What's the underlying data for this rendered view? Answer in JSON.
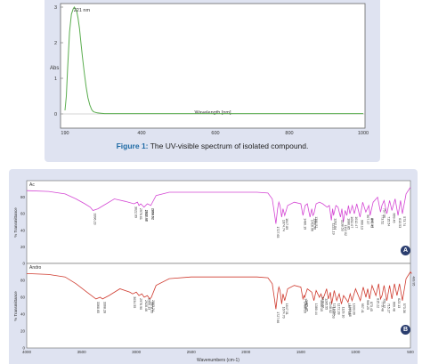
{
  "figure1": {
    "caption_label": "Figure 1:",
    "caption_text": " The UV-visible spectrum of isolated compound."
  },
  "figure_b_badges": [
    "A",
    "B"
  ],
  "chart_data": [
    {
      "type": "line",
      "title": "",
      "xlabel": "Wavelength [nm]",
      "ylabel": "Abs",
      "xlim": [
        190,
        1000
      ],
      "ylim": [
        -0.4,
        3.1
      ],
      "x_ticks": [
        "190",
        "200",
        "400",
        "600",
        "800",
        "1000"
      ],
      "y_ticks": [
        "3",
        "2",
        "1",
        "0"
      ],
      "annotations": [
        {
          "text": "221 nm",
          "x": 221,
          "y": 2.95
        }
      ],
      "series": [
        {
          "color": "#5aad4e",
          "x": [
            190,
            195,
            200,
            205,
            210,
            215,
            218,
            221,
            224,
            228,
            232,
            236,
            240,
            245,
            250,
            255,
            260,
            265,
            270,
            280,
            290,
            300,
            350,
            400,
            500,
            600,
            700,
            800,
            900,
            1000
          ],
          "y": [
            0.1,
            0.5,
            1.3,
            2.3,
            2.8,
            2.95,
            3.0,
            2.95,
            2.9,
            2.7,
            2.4,
            2.0,
            1.6,
            1.15,
            0.75,
            0.45,
            0.25,
            0.12,
            0.06,
            0.03,
            0.02,
            0.01,
            0.01,
            0.01,
            0.01,
            0.01,
            0.01,
            0.01,
            0.01,
            0.01
          ]
        }
      ]
    },
    {
      "type": "line",
      "panel": "A",
      "header": "Ac",
      "xlabel": "",
      "ylabel": "% Transmittance",
      "xlim": [
        4000,
        500
      ],
      "ylim": [
        0,
        100
      ],
      "y_ticks": [
        "80",
        "60",
        "40",
        "20",
        "0"
      ],
      "peaks": [
        "3396.23",
        "3022.69",
        "2976.61",
        "2930.39",
        "2927.47",
        "2868.52",
        "2869.62",
        "1727.65",
        "1674.74",
        "1647.89",
        "1480.19",
        "1416.96",
        "1390.96",
        "1380.52",
        "1221.19",
        "1202.04",
        "1138.53",
        "1112.02",
        "1080.85",
        "1052.07",
        "1012.47",
        "960.13",
        "907.37",
        "867.97",
        "870.45",
        "773.52",
        "757.90",
        "715.54",
        "669.46",
        "613.53",
        "573.74"
      ],
      "series": [
        {
          "color": "#d447d4",
          "x": [
            4000,
            3800,
            3650,
            3550,
            3470,
            3420,
            3396,
            3350,
            3300,
            3200,
            3100,
            3022,
            2990,
            2976,
            2960,
            2930,
            2900,
            2868,
            2820,
            2700,
            2500,
            2300,
            2100,
            1900,
            1800,
            1760,
            1740,
            1727,
            1712,
            1700,
            1690,
            1674,
            1662,
            1647,
            1620,
            1560,
            1500,
            1480,
            1460,
            1440,
            1416,
            1400,
            1390,
            1380,
            1360,
            1330,
            1300,
            1260,
            1240,
            1221,
            1210,
            1202,
            1180,
            1160,
            1138,
            1125,
            1112,
            1095,
            1080,
            1065,
            1052,
            1030,
            1012,
            990,
            960,
            935,
            907,
            880,
            868,
            840,
            800,
            773,
            760,
            740,
            715,
            690,
            669,
            640,
            613,
            590,
            573,
            540,
            500
          ],
          "y": [
            88,
            87,
            84,
            78,
            72,
            68,
            64,
            66,
            70,
            78,
            75,
            72,
            74,
            70,
            72,
            68,
            72,
            70,
            82,
            86,
            86,
            86,
            86,
            86,
            85,
            78,
            60,
            48,
            66,
            74,
            70,
            56,
            66,
            58,
            70,
            74,
            72,
            58,
            70,
            72,
            56,
            66,
            58,
            60,
            72,
            74,
            72,
            68,
            70,
            52,
            66,
            58,
            70,
            68,
            56,
            66,
            50,
            64,
            58,
            70,
            60,
            70,
            60,
            72,
            56,
            74,
            62,
            70,
            58,
            74,
            80,
            62,
            70,
            76,
            60,
            76,
            64,
            78,
            58,
            76,
            60,
            84,
            92
          ]
        }
      ]
    },
    {
      "type": "line",
      "panel": "B",
      "header": "Andro",
      "xlabel": "Wavenumbers (cm-1)",
      "ylabel": "% Transmittance",
      "xlim": [
        4000,
        500
      ],
      "ylim": [
        0,
        100
      ],
      "x_ticks": [
        "4000",
        "3500",
        "3000",
        "2500",
        "2000",
        "1500",
        "1000",
        "500"
      ],
      "y_ticks": [
        "80",
        "60",
        "40",
        "20",
        "0"
      ],
      "peaks": [
        "3368.65",
        "3308.28",
        "3034.55",
        "2976.90",
        "2928.46",
        "2900.13",
        "2878.55",
        "2863.24",
        "1727.66",
        "1674.70",
        "1647.31",
        "1480.16",
        "1470.19",
        "1465.25",
        "1380.44",
        "1330.15",
        "1316.66",
        "1285.55",
        "1248.02",
        "1218.53",
        "1212.54",
        "1172.28",
        "1129.10",
        "1069.68",
        "1077.55",
        "1033.09",
        "957.41",
        "906.25",
        "873.45",
        "815.22",
        "773.48",
        "759.12",
        "715.27",
        "669.48",
        "623.13",
        "573.36",
        "489.95"
      ],
      "series": [
        {
          "color": "#cf3a2e",
          "x": [
            4000,
            3800,
            3650,
            3550,
            3450,
            3368,
            3330,
            3308,
            3250,
            3150,
            3060,
            3034,
            3000,
            2976,
            2950,
            2928,
            2900,
            2878,
            2863,
            2820,
            2700,
            2500,
            2300,
            2100,
            1900,
            1800,
            1760,
            1740,
            1727,
            1712,
            1700,
            1690,
            1674,
            1662,
            1647,
            1620,
            1560,
            1500,
            1480,
            1470,
            1465,
            1440,
            1400,
            1380,
            1360,
            1330,
            1316,
            1300,
            1285,
            1265,
            1248,
            1230,
            1218,
            1212,
            1195,
            1172,
            1150,
            1129,
            1110,
            1077,
            1069,
            1050,
            1033,
            1000,
            957,
            930,
            906,
            890,
            873,
            850,
            815,
            790,
            773,
            759,
            740,
            715,
            690,
            669,
            645,
            623,
            600,
            573,
            540,
            500,
            489
          ],
          "y": [
            88,
            87,
            84,
            76,
            66,
            58,
            60,
            58,
            62,
            70,
            66,
            64,
            66,
            62,
            64,
            60,
            62,
            58,
            60,
            74,
            82,
            84,
            84,
            84,
            84,
            83,
            76,
            58,
            46,
            64,
            72,
            68,
            52,
            64,
            56,
            70,
            74,
            72,
            58,
            62,
            60,
            70,
            66,
            56,
            68,
            60,
            64,
            58,
            62,
            70,
            58,
            66,
            52,
            56,
            68,
            56,
            64,
            52,
            62,
            56,
            54,
            64,
            56,
            70,
            56,
            72,
            60,
            70,
            58,
            74,
            62,
            76,
            58,
            62,
            74,
            56,
            74,
            58,
            76,
            62,
            76,
            56,
            82,
            90,
            88
          ]
        }
      ]
    }
  ]
}
